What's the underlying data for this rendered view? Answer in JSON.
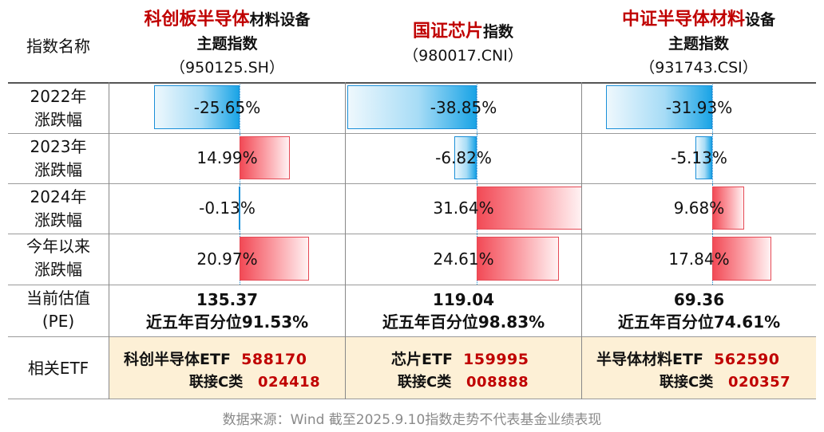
{
  "header": {
    "label_col": "指数名称",
    "columns": [
      {
        "name_red": "科创板半导体",
        "name_black": "材料设备",
        "line2": "主题指数",
        "code": "（950125.SH）"
      },
      {
        "name_red": "国证芯片",
        "name_black": "指数",
        "line2": "",
        "code": "（980017.CNI）"
      },
      {
        "name_red": "中证半导体材料",
        "name_black": "设备",
        "line2": "主题指数",
        "code": "（931743.CSI）"
      }
    ]
  },
  "rows": [
    {
      "label1": "2022年",
      "label2": "涨跌幅",
      "values": [
        "-25.65%",
        "-38.85%",
        "-31.93%"
      ],
      "numbers": [
        -25.65,
        -38.85,
        -31.93
      ]
    },
    {
      "label1": "2023年",
      "label2": "涨跌幅",
      "values": [
        "14.99%",
        "-6.82%",
        "-5.13%"
      ],
      "numbers": [
        14.99,
        -6.82,
        -5.13
      ]
    },
    {
      "label1": "2024年",
      "label2": "涨跌幅",
      "values": [
        "-0.13%",
        "31.64%",
        "9.68%"
      ],
      "numbers": [
        -0.13,
        31.64,
        9.68
      ]
    },
    {
      "label1": "今年以来",
      "label2": "涨跌幅",
      "values": [
        "20.97%",
        "24.61%",
        "17.84%"
      ],
      "numbers": [
        20.97,
        24.61,
        17.84
      ]
    }
  ],
  "pe": {
    "label1": "当前估值",
    "label2": "(PE)",
    "values": [
      "135.37",
      "119.04",
      "69.36"
    ],
    "percentiles": [
      "近五年百分位91.53%",
      "近五年百分位98.83%",
      "近五年百分位74.61%"
    ]
  },
  "etf": {
    "label": "相关ETF",
    "items": [
      {
        "name": "科创半导体ETF",
        "code": "588170",
        "sub": "联接C类",
        "sub_code": "024418"
      },
      {
        "name": "芯片ETF",
        "code": "159995",
        "sub": "联接C类",
        "sub_code": "008888"
      },
      {
        "name": "半导体材料ETF",
        "code": "562590",
        "sub": "联接C类",
        "sub_code": "020357"
      }
    ]
  },
  "colors": {
    "positive": "#f24a56",
    "negative": "#1aa4e6",
    "title_red": "#c00000",
    "etf_bg": "#fdf0d6"
  },
  "source": "数据来源：Wind 截至2025.9.10指数走势不代表基金业绩表现"
}
